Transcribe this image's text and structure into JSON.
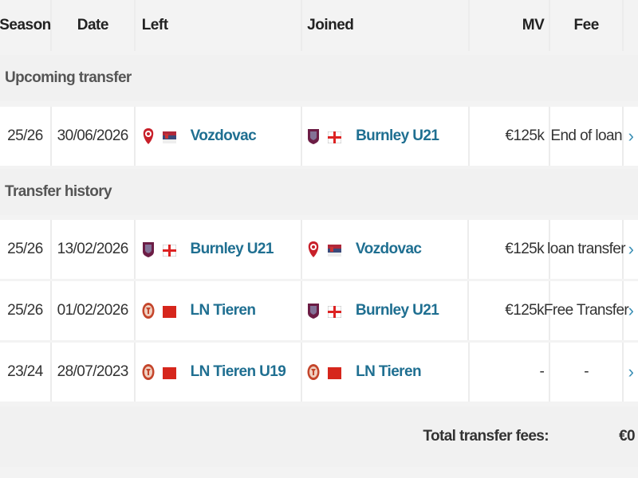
{
  "headers": {
    "season": "Season",
    "date": "Date",
    "left": "Left",
    "joined": "Joined",
    "mv": "MV",
    "fee": "Fee"
  },
  "sections": {
    "upcoming": "Upcoming transfer",
    "history": "Transfer history"
  },
  "rows": [
    {
      "season": "25/26",
      "date": "30/06/2026",
      "left": {
        "club": "Vozdovac",
        "crest": "vozdovac",
        "flag": "serbia"
      },
      "joined": {
        "club": "Burnley U21",
        "crest": "burnley",
        "flag": "england"
      },
      "mv": "€125k",
      "fee": "End of loan"
    },
    {
      "season": "25/26",
      "date": "13/02/2026",
      "left": {
        "club": "Burnley U21",
        "crest": "burnley",
        "flag": "england"
      },
      "joined": {
        "club": "Vozdovac",
        "crest": "vozdovac",
        "flag": "serbia"
      },
      "mv": "€125k",
      "fee": "loan transfer"
    },
    {
      "season": "25/26",
      "date": "01/02/2026",
      "left": {
        "club": "LN Tieren",
        "crest": "tieren",
        "flag": "china"
      },
      "joined": {
        "club": "Burnley U21",
        "crest": "burnley",
        "flag": "england"
      },
      "mv": "€125k",
      "fee": "Free Transfer"
    },
    {
      "season": "23/24",
      "date": "28/07/2023",
      "left": {
        "club": "LN Tieren U19",
        "crest": "tieren",
        "flag": "china"
      },
      "joined": {
        "club": "LN Tieren",
        "crest": "tieren",
        "flag": "china"
      },
      "mv": "-",
      "fee": "-"
    }
  ],
  "footer": {
    "label": "Total transfer fees:",
    "value": "€0"
  },
  "colors": {
    "club_link": "#1f6f91",
    "chevron": "#3a8fb5"
  }
}
